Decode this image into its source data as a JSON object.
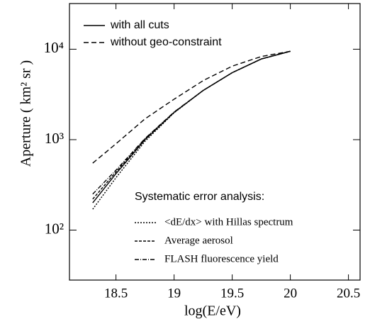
{
  "chart_data": {
    "type": "line",
    "x_label": "log(E/eV)",
    "y_label": "Aperture ( km² sr )",
    "xlim": [
      18.1,
      20.6
    ],
    "xticks": [
      18.5,
      19,
      19.5,
      20,
      20.5
    ],
    "ylim": [
      28,
      32000
    ],
    "log_y": true,
    "yticks": [
      {
        "value": 100,
        "label": "10²"
      },
      {
        "value": 1000,
        "label": "10³"
      },
      {
        "value": 10000,
        "label": "10⁴"
      }
    ],
    "legend_title": "Systematic error analysis:",
    "x": [
      18.3,
      18.5,
      18.75,
      19,
      19.25,
      19.5,
      19.75,
      20
    ],
    "series": [
      {
        "name": "with all cuts",
        "color": "#000000",
        "dash": "none",
        "legend": "upper",
        "values": [
          200,
          420,
          1000,
          2000,
          3500,
          5500,
          7800,
          9500
        ]
      },
      {
        "name": "without geo-constraint",
        "color": "#000000",
        "dash": "7 4",
        "legend": "upper",
        "values": [
          550,
          900,
          1700,
          2800,
          4500,
          6500,
          8300,
          9500
        ]
      },
      {
        "name": "<dE/dx> with Hillas spectrum",
        "color": "#000000",
        "dash": "2 2",
        "legend": "lower",
        "values": [
          170,
          380,
          960,
          1980,
          3500,
          5500,
          7800,
          9500
        ]
      },
      {
        "name": "Average aerosol",
        "color": "#000000",
        "dash": "4 2",
        "legend": "lower",
        "values": [
          220,
          440,
          1020,
          2010,
          3500,
          5500,
          7800,
          9500
        ]
      },
      {
        "name": "FLASH fluorescence yield",
        "color": "#000000",
        "dash": "6 2 1 2",
        "legend": "lower",
        "values": [
          250,
          460,
          1030,
          2020,
          3500,
          5500,
          7800,
          9500
        ]
      }
    ]
  }
}
